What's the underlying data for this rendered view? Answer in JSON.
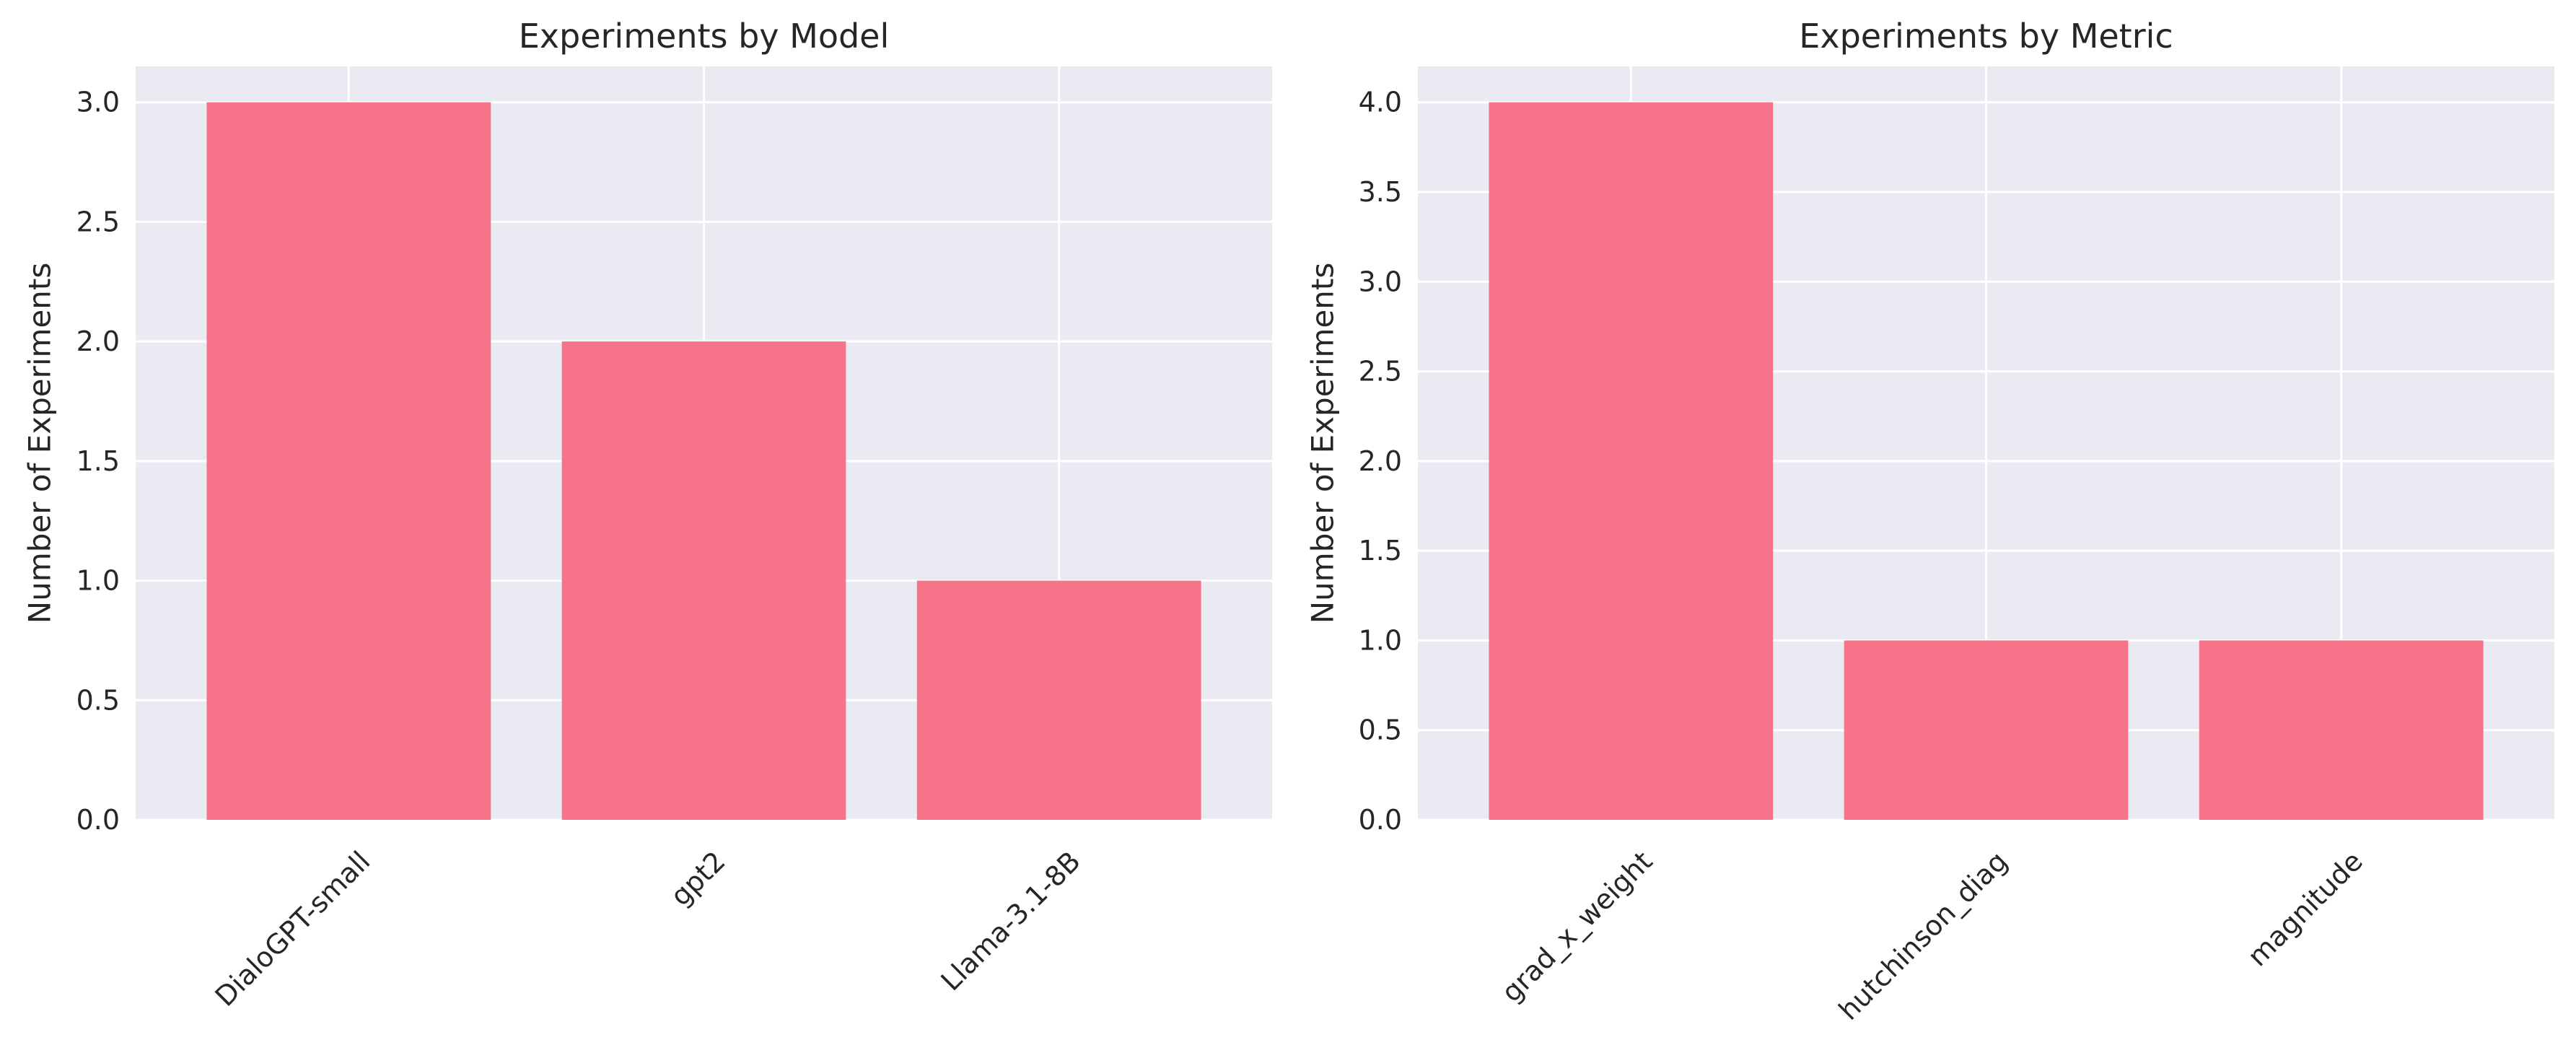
{
  "chart_data": [
    {
      "type": "bar",
      "title": "Experiments by Model",
      "xlabel": "",
      "ylabel": "Number of Experiments",
      "categories": [
        "DialoGPT-small",
        "gpt2",
        "Llama-3.1-8B"
      ],
      "values": [
        3,
        2,
        1
      ],
      "ylim": [
        0,
        3.15
      ],
      "yticks": [
        0.0,
        0.5,
        1.0,
        1.5,
        2.0,
        2.5,
        3.0
      ],
      "ytick_labels": [
        "0.0",
        "0.5",
        "1.0",
        "1.5",
        "2.0",
        "2.5",
        "3.0"
      ],
      "grid": true,
      "bar_color": "#f7738a",
      "background_color": "#eaeaf2"
    },
    {
      "type": "bar",
      "title": "Experiments by Metric",
      "xlabel": "",
      "ylabel": "Number of Experiments",
      "categories": [
        "grad_x_weight",
        "hutchinson_diag",
        "magnitude"
      ],
      "values": [
        4,
        1,
        1
      ],
      "ylim": [
        0,
        4.2
      ],
      "yticks": [
        0.0,
        0.5,
        1.0,
        1.5,
        2.0,
        2.5,
        3.0,
        3.5,
        4.0
      ],
      "ytick_labels": [
        "0.0",
        "0.5",
        "1.0",
        "1.5",
        "2.0",
        "2.5",
        "3.0",
        "3.5",
        "4.0"
      ],
      "grid": true,
      "bar_color": "#f7738a",
      "background_color": "#eaeaf2"
    }
  ]
}
